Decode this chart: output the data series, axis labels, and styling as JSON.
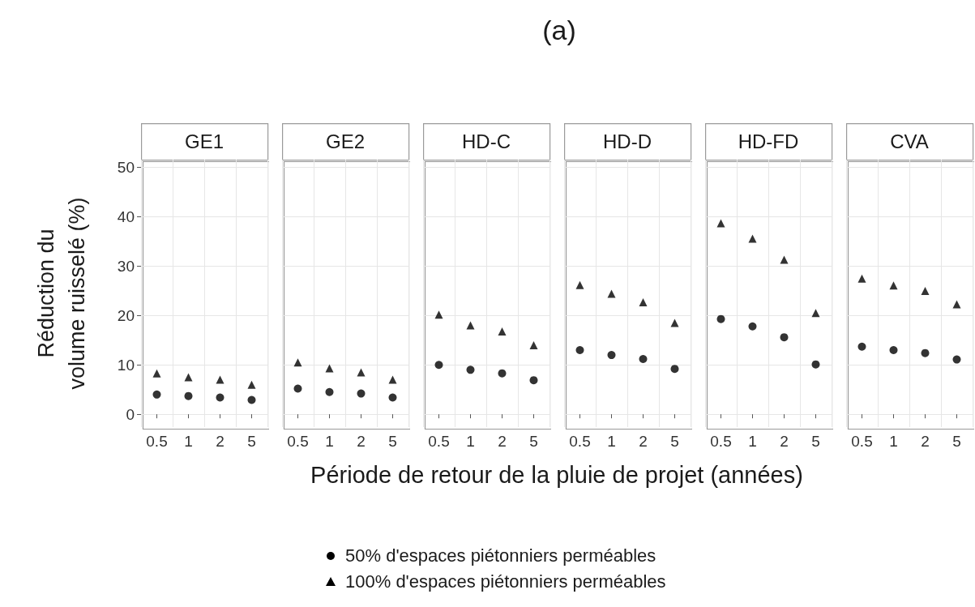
{
  "chart_data": [
    {
      "type": "other",
      "title": "(a)"
    },
    {
      "type": "scatter",
      "subtitle": "GE1",
      "xlabel": "Période de retour de la pluie de projet (années)",
      "ylabel": "Réduction du\nvolume ruisselé (%)",
      "categories": [
        "0.5",
        "1",
        "2",
        "5"
      ],
      "ylim": [
        -2.6,
        51.6
      ],
      "yticks": [
        0,
        10,
        20,
        30,
        40,
        50
      ],
      "grid": true,
      "legend": "bottom",
      "series": [
        {
          "name": "50% d'espaces piétonniers perméables",
          "color": "#000000",
          "marker": "circle",
          "values": [
            4,
            3.7,
            3.4,
            2.9
          ]
        },
        {
          "name": "100% d'espaces piétonniers perméables",
          "color": "#000000",
          "marker": "triangle",
          "values": [
            8.3,
            7.5,
            7,
            6
          ]
        }
      ]
    },
    {
      "type": "scatter",
      "subtitle": "GE2",
      "categories": [
        "0.5",
        "1",
        "2",
        "5"
      ],
      "ylim": [
        -2.6,
        51.6
      ],
      "yticks": [
        0,
        10,
        20,
        30,
        40,
        50
      ],
      "grid": true,
      "tick_labels": "x",
      "series": [
        {
          "color": "#000000",
          "marker": "circle",
          "values": [
            5.2,
            4.5,
            4.2,
            3.4
          ]
        },
        {
          "color": "#000000",
          "marker": "triangle",
          "values": [
            10.5,
            9.3,
            8.5,
            7
          ]
        }
      ]
    },
    {
      "type": "scatter",
      "subtitle": "HD-C",
      "categories": [
        "0.5",
        "1",
        "2",
        "5"
      ],
      "ylim": [
        -2.6,
        51.6
      ],
      "yticks": [
        0,
        10,
        20,
        30,
        40,
        50
      ],
      "grid": true,
      "tick_labels": "x",
      "series": [
        {
          "color": "#000000",
          "marker": "circle",
          "values": [
            10,
            9,
            8.3,
            6.9
          ]
        },
        {
          "color": "#000000",
          "marker": "triangle",
          "values": [
            20.2,
            18,
            16.8,
            14
          ]
        }
      ]
    },
    {
      "type": "scatter",
      "subtitle": "HD-D",
      "categories": [
        "0.5",
        "1",
        "2",
        "5"
      ],
      "ylim": [
        -2.6,
        51.6
      ],
      "yticks": [
        0,
        10,
        20,
        30,
        40,
        50
      ],
      "grid": true,
      "tick_labels": "x",
      "series": [
        {
          "color": "#000000",
          "marker": "circle",
          "values": [
            13,
            12,
            11.2,
            9.2
          ]
        },
        {
          "color": "#000000",
          "marker": "triangle",
          "values": [
            26.2,
            24.4,
            22.7,
            18.5
          ]
        }
      ]
    },
    {
      "type": "scatter",
      "subtitle": "HD-FD",
      "categories": [
        "0.5",
        "1",
        "2",
        "5"
      ],
      "ylim": [
        -2.6,
        51.6
      ],
      "yticks": [
        0,
        10,
        20,
        30,
        40,
        50
      ],
      "grid": true,
      "tick_labels": "x",
      "series": [
        {
          "color": "#000000",
          "marker": "circle",
          "values": [
            19.3,
            17.8,
            15.6,
            10.1
          ]
        },
        {
          "color": "#000000",
          "marker": "triangle",
          "values": [
            38.7,
            35.6,
            31.3,
            20.5
          ]
        }
      ]
    },
    {
      "type": "scatter",
      "subtitle": "CVA",
      "categories": [
        "0.5",
        "1",
        "2",
        "5"
      ],
      "ylim": [
        -2.6,
        51.6
      ],
      "yticks": [
        0,
        10,
        20,
        30,
        40,
        50
      ],
      "grid": true,
      "tick_labels": "x",
      "series": [
        {
          "color": "#000000",
          "marker": "circle",
          "values": [
            13.7,
            13,
            12.4,
            11.1
          ]
        },
        {
          "color": "#000000",
          "marker": "triangle",
          "values": [
            27.5,
            26.1,
            25,
            22.3
          ]
        }
      ]
    }
  ]
}
